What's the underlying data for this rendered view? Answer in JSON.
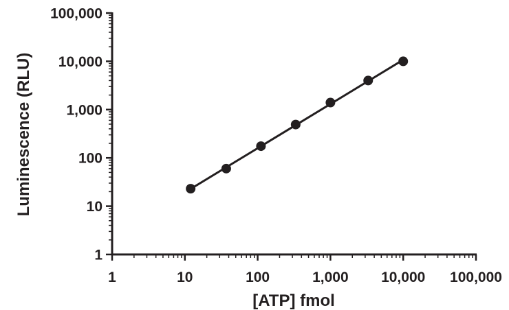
{
  "chart_data": {
    "type": "scatter",
    "title": "",
    "xlabel": "[ATP] fmol",
    "ylabel": "Luminescence (RLU)",
    "xscale": "log",
    "yscale": "log",
    "xlim": [
      1,
      100000
    ],
    "ylim": [
      1,
      100000
    ],
    "x_ticks": [
      1,
      10,
      100,
      1000,
      10000,
      100000
    ],
    "x_tick_labels": [
      "1",
      "10",
      "100",
      "1,000",
      "10,000",
      "100,000"
    ],
    "y_ticks": [
      1,
      10,
      100,
      1000,
      10000,
      100000
    ],
    "y_tick_labels": [
      "1",
      "10",
      "100",
      "1,000",
      "10,000",
      "100,000"
    ],
    "grid": false,
    "legend": "none",
    "series": [
      {
        "x": [
          12,
          37,
          111,
          333,
          1000,
          3300,
          10000
        ],
        "y": [
          23,
          60,
          175,
          490,
          1400,
          4000,
          10000
        ],
        "marker": "filled-circle",
        "fit_line": true,
        "color": "#231f20"
      }
    ]
  }
}
